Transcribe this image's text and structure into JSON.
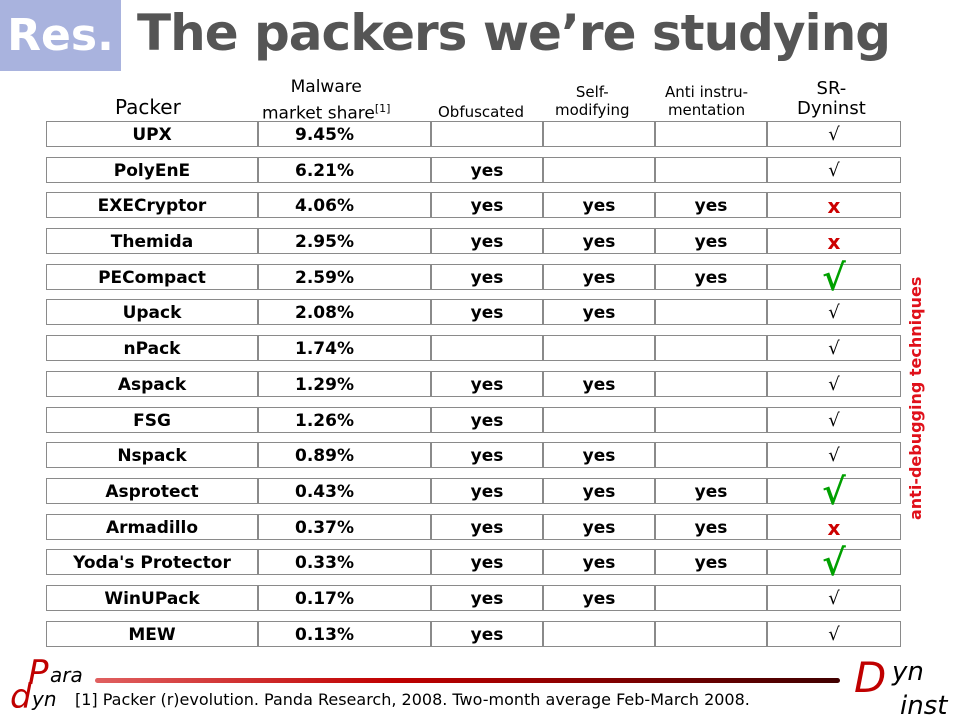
{
  "header": {
    "res_label": "Res.",
    "title": "The packers we’re studying"
  },
  "columns": {
    "packer": "Packer",
    "market_share_line1": "Malware",
    "market_share_line2": "market share",
    "market_share_ref": "[1]",
    "obfuscated": "Obfuscated",
    "self_modifying_line1": "Self-",
    "self_modifying_line2": "modifying",
    "anti_instru_line1": "Anti instru-",
    "anti_instru_line2": "mentation",
    "sr_line1": "SR-",
    "sr_line2": "Dyninst"
  },
  "rows": [
    {
      "name": "UPX",
      "share": "9.45%",
      "obf": "",
      "self": "",
      "anti": "",
      "sr": "√",
      "sr_kind": "check"
    },
    {
      "name": "PolyEnE",
      "share": "6.21%",
      "obf": "yes",
      "self": "",
      "anti": "",
      "sr": "√",
      "sr_kind": "check"
    },
    {
      "name": "EXECryptor",
      "share": "4.06%",
      "obf": "yes",
      "self": "yes",
      "anti": "yes",
      "sr": "x",
      "sr_kind": "x"
    },
    {
      "name": "Themida",
      "share": "2.95%",
      "obf": "yes",
      "self": "yes",
      "anti": "yes",
      "sr": "x",
      "sr_kind": "x"
    },
    {
      "name": "PECompact",
      "share": "2.59%",
      "obf": "yes",
      "self": "yes",
      "anti": "yes",
      "sr": "√",
      "sr_kind": "check-big"
    },
    {
      "name": "Upack",
      "share": "2.08%",
      "obf": "yes",
      "self": "yes",
      "anti": "",
      "sr": "√",
      "sr_kind": "check"
    },
    {
      "name": "nPack",
      "share": "1.74%",
      "obf": "",
      "self": "",
      "anti": "",
      "sr": "√",
      "sr_kind": "check"
    },
    {
      "name": "Aspack",
      "share": "1.29%",
      "obf": "yes",
      "self": "yes",
      "anti": "",
      "sr": "√",
      "sr_kind": "check"
    },
    {
      "name": "FSG",
      "share": "1.26%",
      "obf": "yes",
      "self": "",
      "anti": "",
      "sr": "√",
      "sr_kind": "check"
    },
    {
      "name": "Nspack",
      "share": "0.89%",
      "obf": "yes",
      "self": "yes",
      "anti": "",
      "sr": "√",
      "sr_kind": "check"
    },
    {
      "name": "Asprotect",
      "share": "0.43%",
      "obf": "yes",
      "self": "yes",
      "anti": "yes",
      "sr": "√",
      "sr_kind": "check-big"
    },
    {
      "name": "Armadillo",
      "share": "0.37%",
      "obf": "yes",
      "self": "yes",
      "anti": "yes",
      "sr": "x",
      "sr_kind": "x"
    },
    {
      "name": "Yoda's Protector",
      "share": "0.33%",
      "obf": "yes",
      "self": "yes",
      "anti": "yes",
      "sr": "√",
      "sr_kind": "check-big"
    },
    {
      "name": "WinUPack",
      "share": "0.17%",
      "obf": "yes",
      "self": "yes",
      "anti": "",
      "sr": "√",
      "sr_kind": "check"
    },
    {
      "name": "MEW",
      "share": "0.13%",
      "obf": "yes",
      "self": "",
      "anti": "",
      "sr": "√",
      "sr_kind": "check"
    }
  ],
  "side_label": "anti-debugging techniques",
  "footnote": "[1] Packer (r)evolution.  Panda Research, 2008.  Two-month average Feb-March 2008.",
  "logo_left": {
    "line1": "ara",
    "line2": "yn",
    "p": "P",
    "d": "d"
  },
  "logo_right": {
    "d": "D",
    "yn": "yn",
    "inst": "inst"
  },
  "colors": {
    "res_box": "#a9b3de",
    "title": "#555555",
    "check_big": "#00a000",
    "x_mark": "#cc0000",
    "side_label": "#e0101a",
    "logo": "#c00000"
  }
}
